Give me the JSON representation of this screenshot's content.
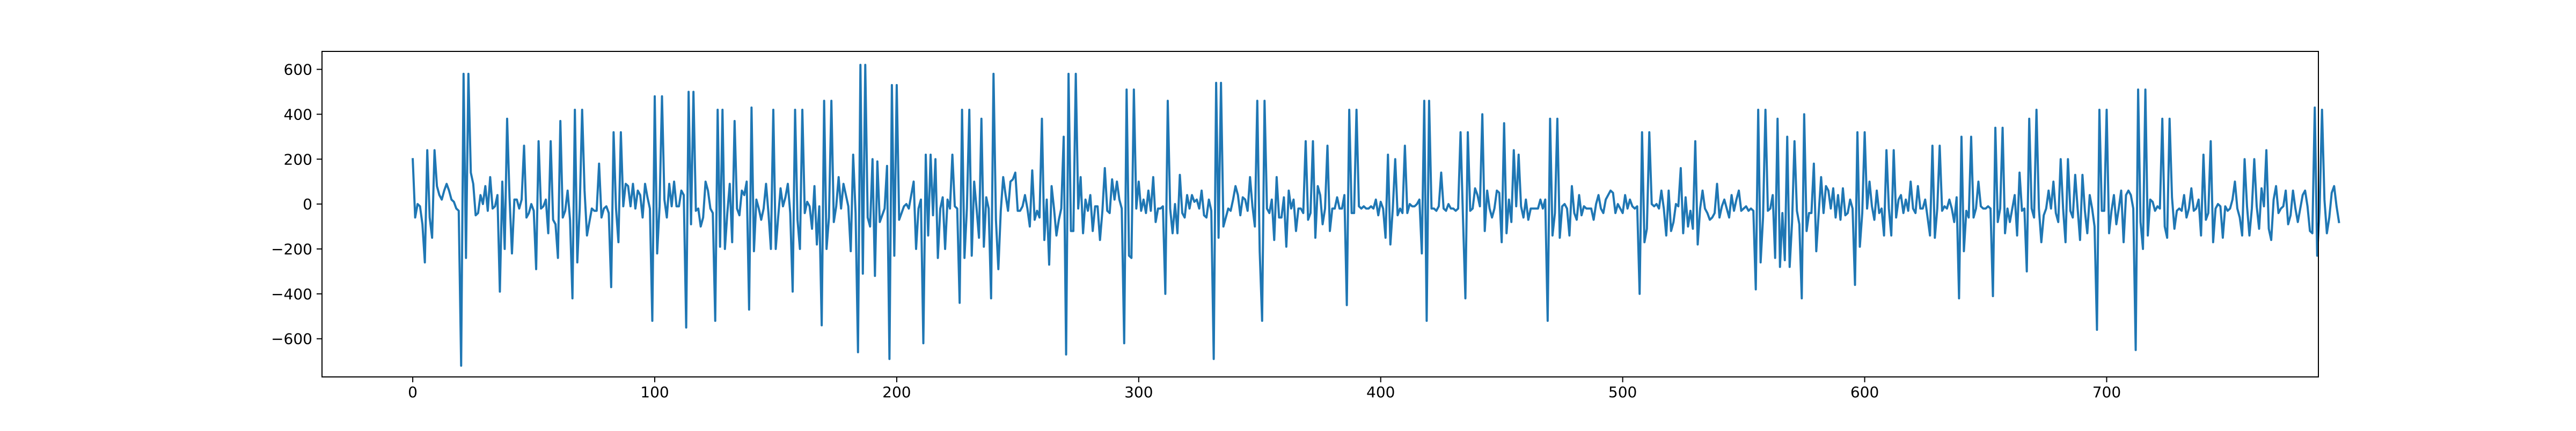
{
  "chart_data": {
    "type": "line",
    "title": "",
    "xlabel": "",
    "ylabel": "",
    "xlim": [
      -37.5,
      787.5
    ],
    "ylim": [
      -770,
      680
    ],
    "x_ticks": [
      0,
      100,
      200,
      300,
      400,
      500,
      600,
      700
    ],
    "y_ticks": [
      -600,
      -400,
      -200,
      0,
      200,
      400,
      600
    ],
    "x_tick_labels": [
      "0",
      "100",
      "200",
      "300",
      "400",
      "500",
      "600",
      "700"
    ],
    "y_tick_labels": [
      "−600",
      "−400",
      "−200",
      "0",
      "200",
      "400",
      "600"
    ],
    "grid": false,
    "legend": "none",
    "colors": {
      "line": "#1f77b4",
      "axes": "#000000",
      "background": "#ffffff"
    },
    "series": [
      {
        "x_start": 0,
        "x_step": 1,
        "values": [
          200,
          -60,
          0,
          -10,
          -90,
          -260,
          240,
          -60,
          -150,
          240,
          80,
          40,
          20,
          60,
          90,
          60,
          20,
          10,
          -20,
          -30,
          -720,
          580,
          -240,
          580,
          140,
          90,
          -50,
          -40,
          40,
          0,
          80,
          -30,
          120,
          -20,
          -10,
          40,
          -390,
          100,
          -200,
          380,
          30,
          -220,
          20,
          20,
          -20,
          20,
          260,
          -60,
          -40,
          0,
          -30,
          -290,
          280,
          -20,
          -10,
          20,
          -130,
          280,
          -70,
          -90,
          -240,
          370,
          -60,
          -30,
          60,
          -70,
          -420,
          420,
          -260,
          -20,
          420,
          60,
          -140,
          -80,
          -20,
          -30,
          -30,
          180,
          -60,
          -20,
          -10,
          -40,
          -370,
          320,
          -20,
          -170,
          320,
          -10,
          90,
          80,
          -10,
          90,
          -20,
          60,
          40,
          -60,
          90,
          30,
          -20,
          -520,
          480,
          -220,
          -10,
          480,
          20,
          -60,
          90,
          -10,
          100,
          -10,
          -10,
          60,
          40,
          -550,
          500,
          -90,
          500,
          -30,
          -20,
          -100,
          -60,
          100,
          60,
          -20,
          -40,
          -520,
          420,
          -190,
          420,
          -200,
          -40,
          90,
          -170,
          370,
          -20,
          -50,
          60,
          40,
          100,
          -470,
          430,
          -210,
          20,
          -20,
          -70,
          -20,
          90,
          -40,
          -200,
          420,
          -200,
          -60,
          70,
          -10,
          30,
          90,
          -40,
          -390,
          420,
          -70,
          -200,
          420,
          -40,
          10,
          -10,
          -110,
          80,
          -180,
          -10,
          -540,
          460,
          -200,
          -60,
          460,
          -80,
          -10,
          120,
          -20,
          90,
          40,
          -10,
          -210,
          220,
          -40,
          -660,
          620,
          -310,
          620,
          -60,
          -100,
          200,
          -320,
          190,
          -80,
          -50,
          -20,
          170,
          -690,
          530,
          -230,
          530,
          -70,
          -40,
          -10,
          0,
          -20,
          40,
          100,
          -200,
          -20,
          20,
          -620,
          220,
          -140,
          220,
          -50,
          200,
          -240,
          -20,
          30,
          -200,
          20,
          -20,
          220,
          -10,
          -20,
          -440,
          420,
          -240,
          -20,
          420,
          -230,
          100,
          -20,
          -150,
          380,
          -190,
          30,
          -20,
          -420,
          580,
          -70,
          -290,
          -30,
          120,
          40,
          -30,
          100,
          110,
          140,
          -30,
          -30,
          -10,
          40,
          -20,
          -100,
          150,
          -70,
          -30,
          -60,
          380,
          -160,
          20,
          -270,
          80,
          -20,
          -140,
          -70,
          -20,
          300,
          -670,
          580,
          -120,
          -120,
          580,
          -20,
          120,
          -130,
          20,
          -30,
          40,
          -120,
          -10,
          -10,
          -160,
          -30,
          160,
          -30,
          -40,
          110,
          20,
          100,
          20,
          -20,
          -620,
          510,
          -230,
          -240,
          510,
          -20,
          100,
          -30,
          20,
          -40,
          60,
          -30,
          120,
          -80,
          -20,
          -20,
          -10,
          -400,
          460,
          -20,
          -130,
          0,
          -130,
          130,
          -40,
          -60,
          40,
          -20,
          40,
          10,
          20,
          -20,
          60,
          -50,
          -60,
          20,
          -30,
          -690,
          540,
          -150,
          540,
          -100,
          -60,
          -20,
          -30,
          20,
          80,
          40,
          -50,
          30,
          20,
          -30,
          120,
          -10,
          -100,
          460,
          -210,
          -520,
          460,
          -20,
          -40,
          20,
          -160,
          120,
          -60,
          -60,
          30,
          -190,
          60,
          -20,
          20,
          -120,
          -20,
          -20,
          -40,
          280,
          -70,
          -40,
          280,
          -150,
          80,
          40,
          -90,
          -20,
          260,
          -120,
          -20,
          -20,
          30,
          -20,
          -20,
          40,
          -450,
          420,
          -40,
          -40,
          420,
          -10,
          -20,
          -10,
          -20,
          -20,
          -10,
          -20,
          20,
          -50,
          10,
          -20,
          -150,
          220,
          -180,
          -20,
          200,
          -50,
          -20,
          -40,
          260,
          -40,
          0,
          -10,
          -10,
          0,
          20,
          -220,
          460,
          -520,
          460,
          -20,
          -20,
          -30,
          -10,
          140,
          -20,
          -30,
          0,
          -20,
          -20,
          -30,
          -20,
          320,
          -60,
          -420,
          320,
          -30,
          -20,
          70,
          40,
          -10,
          400,
          -120,
          60,
          -20,
          -60,
          -20,
          60,
          50,
          -170,
          360,
          -130,
          20,
          -80,
          240,
          -10,
          220,
          -10,
          -60,
          20,
          -70,
          -20,
          -20,
          -20,
          -20,
          20,
          -20,
          20,
          -520,
          380,
          -140,
          -40,
          380,
          -150,
          -10,
          0,
          -20,
          -140,
          80,
          -40,
          -70,
          40,
          -50,
          -10,
          -20,
          -20,
          -20,
          -70,
          0,
          40,
          -20,
          -40,
          20,
          40,
          60,
          50,
          -40,
          0,
          -20,
          -40,
          40,
          -20,
          20,
          -10,
          -20,
          -10,
          -400,
          320,
          -170,
          -110,
          320,
          0,
          -10,
          0,
          -20,
          60,
          -20,
          -140,
          60,
          -120,
          -80,
          0,
          -10,
          160,
          -130,
          30,
          -100,
          -30,
          -110,
          280,
          -180,
          -20,
          60,
          -20,
          -40,
          -70,
          -60,
          -40,
          90,
          -60,
          -10,
          20,
          -20,
          -60,
          40,
          -30,
          20,
          60,
          -30,
          -20,
          -10,
          -30,
          -20,
          -30,
          -380,
          420,
          -260,
          -60,
          420,
          -30,
          -20,
          40,
          -240,
          380,
          -280,
          -40,
          -250,
          300,
          -280,
          -80,
          280,
          -30,
          -90,
          -420,
          400,
          -120,
          -40,
          -40,
          180,
          -210,
          -40,
          120,
          -40,
          80,
          60,
          -20,
          70,
          -60,
          40,
          -70,
          70,
          -50,
          -40,
          20,
          -20,
          -360,
          320,
          -190,
          -40,
          320,
          -20,
          100,
          -10,
          -70,
          60,
          -40,
          -20,
          -140,
          240,
          -20,
          -140,
          240,
          -60,
          20,
          40,
          -40,
          20,
          -30,
          100,
          -20,
          -40,
          80,
          -20,
          -20,
          20,
          -60,
          -140,
          260,
          -150,
          -20,
          260,
          -30,
          -10,
          -20,
          20,
          -20,
          -80,
          30,
          -420,
          300,
          -210,
          -30,
          -60,
          300,
          -60,
          -20,
          100,
          -10,
          -20,
          -20,
          -10,
          -20,
          -410,
          340,
          -80,
          -20,
          340,
          -130,
          -20,
          -80,
          -20,
          40,
          -140,
          140,
          -30,
          -20,
          -300,
          380,
          -20,
          -60,
          420,
          -20,
          -170,
          -50,
          -20,
          60,
          -20,
          100,
          -40,
          -80,
          200,
          -20,
          -170,
          200,
          -30,
          -60,
          130,
          -20,
          -160,
          130,
          -30,
          -130,
          40,
          -20,
          -100,
          -560,
          420,
          -30,
          -30,
          420,
          -130,
          -30,
          40,
          -90,
          -20,
          60,
          -170,
          40,
          60,
          40,
          -20,
          -650,
          510,
          -80,
          -200,
          510,
          -140,
          20,
          10,
          -30,
          -10,
          -20,
          380,
          -100,
          -150,
          380,
          30,
          -110,
          -30,
          -20,
          -30,
          40,
          -60,
          -20,
          70,
          -30,
          -20,
          20,
          -140,
          220,
          -70,
          -40,
          280,
          -170,
          -20,
          0,
          -10,
          -150,
          -10,
          -30,
          -20,
          20,
          100,
          -20,
          -60,
          -140,
          200,
          -10,
          -140,
          -20,
          200,
          -10,
          -110,
          70,
          -10,
          240,
          -110,
          -160,
          20,
          80,
          -40,
          -20,
          -10,
          60,
          -90,
          -50,
          60,
          -20,
          -80,
          -20,
          40,
          60,
          -10,
          -120,
          -130,
          430,
          -230,
          -20,
          420,
          20,
          -130,
          -60,
          50,
          80,
          -10,
          -80
        ]
      }
    ]
  }
}
